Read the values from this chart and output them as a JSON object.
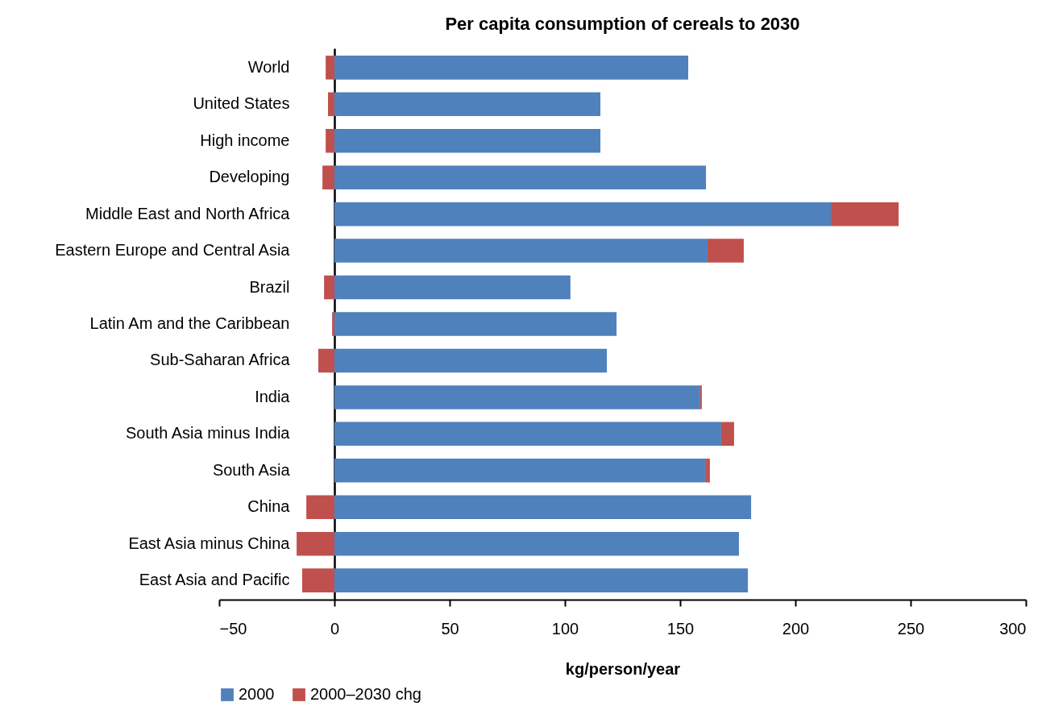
{
  "chart_data": {
    "type": "bar",
    "title": "Per capita consumption of cereals to 2030",
    "xlabel": "kg/person/year",
    "orientation": "horizontal",
    "stacked": true,
    "categories": [
      "World",
      "United States",
      "High income",
      "Developing",
      "Middle East and North Africa",
      "Eastern Europe and Central Asia",
      "Brazil",
      "Latin Am and the Caribbean",
      "Sub-Saharan Africa",
      "India",
      "South Asia minus India",
      "South Asia",
      "China",
      "East Asia minus China",
      "East Asia and Pacific"
    ],
    "series": [
      {
        "name": "2000",
        "color": "#4f81bd",
        "values": [
          153.5,
          115.4,
          115.4,
          161.2,
          215.4,
          161.9,
          102.4,
          122.4,
          118.2,
          158.7,
          167.8,
          161.2,
          180.8,
          175.5,
          179.4
        ]
      },
      {
        "name": "2000–2030 chg",
        "color": "#c0504d",
        "values": [
          -3.8,
          -2.8,
          -3.8,
          -5.2,
          29.4,
          15.7,
          -4.5,
          -1.0,
          -7.0,
          0.7,
          5.6,
          1.7,
          -12.2,
          -16.4,
          -14.0
        ]
      }
    ],
    "xlim": [
      -50,
      300
    ],
    "xticks": [
      -50,
      0,
      50,
      100,
      150,
      200,
      250,
      300
    ],
    "legend": "bottom"
  }
}
